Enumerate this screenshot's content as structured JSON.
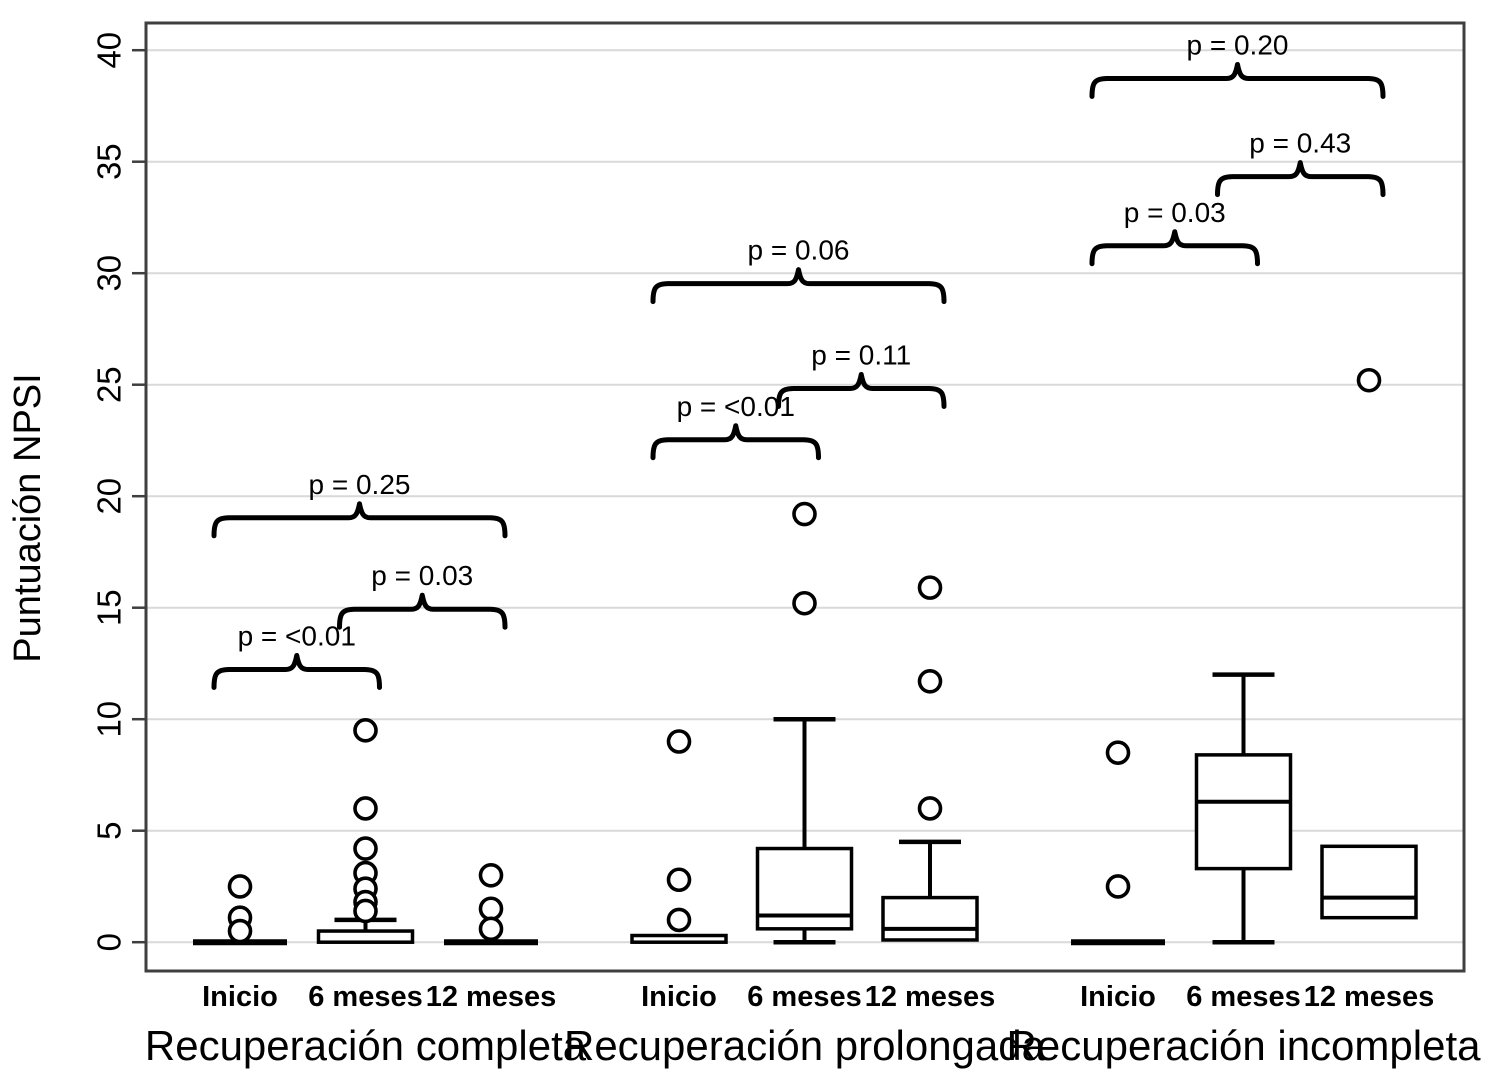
{
  "figure": {
    "background": "#ffffff",
    "ink_color": "#000000",
    "grid_color": "#d9d9d9",
    "border_color": "#3f3f3f"
  },
  "chart_data": {
    "type": "boxplot",
    "title": "",
    "xlabel": "",
    "ylabel": "Puntuación NPSI",
    "ylim": [
      0,
      40
    ],
    "yticks": [
      0,
      5,
      10,
      15,
      20,
      25,
      30,
      35,
      40
    ],
    "grid": true,
    "legend": false,
    "categories": [
      "Inicio",
      "6 meses",
      "12 meses"
    ],
    "groups": [
      {
        "label": "Recuperación completa",
        "boxes": [
          {
            "category": "Inicio",
            "style": "flat-line",
            "q1": 0,
            "median": 0,
            "q3": 0,
            "whisker_low": 0,
            "whisker_high": 0,
            "outliers": [
              2.5,
              1.1,
              0.5
            ]
          },
          {
            "category": "6 meses",
            "style": "box",
            "q1": 0,
            "median": 0,
            "q3": 0.5,
            "whisker_low": 0,
            "whisker_high": 1.0,
            "outliers": [
              9.5,
              6.0,
              4.2,
              3.1,
              2.4,
              1.8,
              1.4
            ]
          },
          {
            "category": "12 meses",
            "style": "flat-line",
            "q1": 0,
            "median": 0,
            "q3": 0,
            "whisker_low": 0,
            "whisker_high": 0,
            "outliers": [
              3.0,
              1.5,
              0.6
            ]
          }
        ],
        "comparisons": [
          {
            "between": [
              "Inicio",
              "6 meses"
            ],
            "label": "p = <0.01",
            "bar_y": 12.5
          },
          {
            "between": [
              "6 meses",
              "12 meses"
            ],
            "label": "p = 0.03",
            "bar_y": 15.2
          },
          {
            "between": [
              "Inicio",
              "12 meses"
            ],
            "label": "p = 0.25",
            "bar_y": 19.3
          }
        ]
      },
      {
        "label": "Recuperación prolongada",
        "boxes": [
          {
            "category": "Inicio",
            "style": "thin-box",
            "q1": 0,
            "median": 0,
            "q3": 0.3,
            "whisker_low": 0,
            "whisker_high": 0.3,
            "outliers": [
              9.0,
              2.8,
              1.0
            ]
          },
          {
            "category": "6 meses",
            "style": "box",
            "q1": 0.6,
            "median": 1.2,
            "q3": 4.2,
            "whisker_low": 0,
            "whisker_high": 10.0,
            "outliers": [
              19.2,
              15.2
            ]
          },
          {
            "category": "12 meses",
            "style": "box",
            "q1": 0.1,
            "median": 0.6,
            "q3": 2.0,
            "whisker_low": 0.1,
            "whisker_high": 4.5,
            "outliers": [
              15.9,
              11.7,
              6.0
            ]
          }
        ],
        "comparisons": [
          {
            "between": [
              "Inicio",
              "6 meses"
            ],
            "label": "p = <0.01",
            "bar_y": 22.8
          },
          {
            "between": [
              "6 meses",
              "12 meses"
            ],
            "label": "p = 0.11",
            "bar_y": 25.1
          },
          {
            "between": [
              "Inicio",
              "12 meses"
            ],
            "label": "p = 0.06",
            "bar_y": 29.8
          }
        ]
      },
      {
        "label": "Recuperación incompleta",
        "boxes": [
          {
            "category": "Inicio",
            "style": "flat-line",
            "q1": 0,
            "median": 0,
            "q3": 0,
            "whisker_low": 0,
            "whisker_high": 0,
            "outliers": [
              8.5,
              2.5
            ]
          },
          {
            "category": "6 meses",
            "style": "box",
            "q1": 3.3,
            "median": 6.3,
            "q3": 8.4,
            "whisker_low": 0,
            "whisker_high": 12.0,
            "outliers": []
          },
          {
            "category": "12 meses",
            "style": "box",
            "q1": 1.1,
            "median": 2.0,
            "q3": 4.3,
            "whisker_low": 1.1,
            "whisker_high": 4.3,
            "outliers": [
              25.2
            ]
          }
        ],
        "comparisons": [
          {
            "between": [
              "Inicio",
              "6 meses"
            ],
            "label": "p = 0.03",
            "bar_y": 31.5
          },
          {
            "between": [
              "6 meses",
              "12 meses"
            ],
            "label": "p = 0.43",
            "bar_y": 34.6
          },
          {
            "between": [
              "Inicio",
              "12 meses"
            ],
            "label": "p = 0.20",
            "bar_y": 39.0
          }
        ]
      }
    ]
  }
}
